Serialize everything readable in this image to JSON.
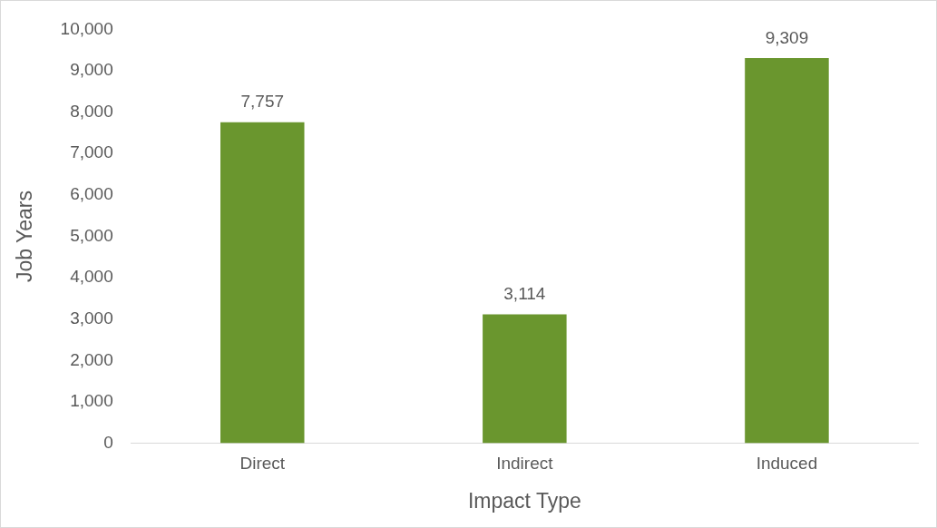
{
  "chart_data": {
    "type": "bar",
    "xlabel": "Impact Type",
    "ylabel": "Job Years",
    "categories": [
      "Direct",
      "Indirect",
      "Induced"
    ],
    "values": [
      7757,
      3114,
      9309
    ],
    "color": "#6a962e",
    "ylim": [
      0,
      10000
    ],
    "yticks": [
      {
        "value": 0,
        "label": "0"
      },
      {
        "value": 1000,
        "label": "1,000"
      },
      {
        "value": 2000,
        "label": "2,000"
      },
      {
        "value": 3000,
        "label": "3,000"
      },
      {
        "value": 4000,
        "label": "4,000"
      },
      {
        "value": 5000,
        "label": "5,000"
      },
      {
        "value": 6000,
        "label": "6,000"
      },
      {
        "value": 7000,
        "label": "7,000"
      },
      {
        "value": 8000,
        "label": "8,000"
      },
      {
        "value": 9000,
        "label": "9,000"
      },
      {
        "value": 10000,
        "label": "10,000"
      }
    ],
    "value_labels": [
      "7,757",
      "3,114",
      "9,309"
    ],
    "grid": false,
    "legend": false
  }
}
